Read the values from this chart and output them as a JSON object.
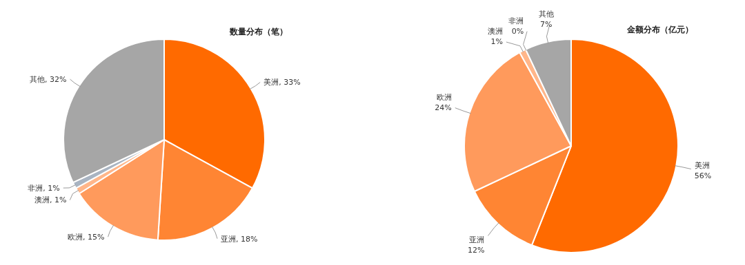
{
  "chart_data": [
    {
      "type": "pie",
      "title": "数量分布（笔）",
      "categories": [
        "美洲",
        "亚洲",
        "欧洲",
        "澳洲",
        "非洲",
        "其他"
      ],
      "values": [
        33,
        18,
        15,
        1,
        1,
        32
      ],
      "value_labels": [
        "33%",
        "18%",
        "15%",
        "1%",
        "1%",
        "32%"
      ],
      "colors": [
        "#ff6a00",
        "#ff8533",
        "#ff9a5c",
        "#ffb68a",
        "#a9b4c2",
        "#a6a6a6"
      ]
    },
    {
      "type": "pie",
      "title": "金额分布（亿元）",
      "categories": [
        "美洲",
        "亚洲",
        "欧洲",
        "澳洲",
        "非洲",
        "其他"
      ],
      "values": [
        56,
        12,
        24,
        1,
        0,
        7
      ],
      "value_labels": [
        "56%",
        "12%",
        "24%",
        "1%",
        "0%",
        "7%"
      ],
      "colors": [
        "#ff6a00",
        "#ff8533",
        "#ff9a5c",
        "#ffb68a",
        null,
        "#a6a6a6"
      ]
    }
  ]
}
